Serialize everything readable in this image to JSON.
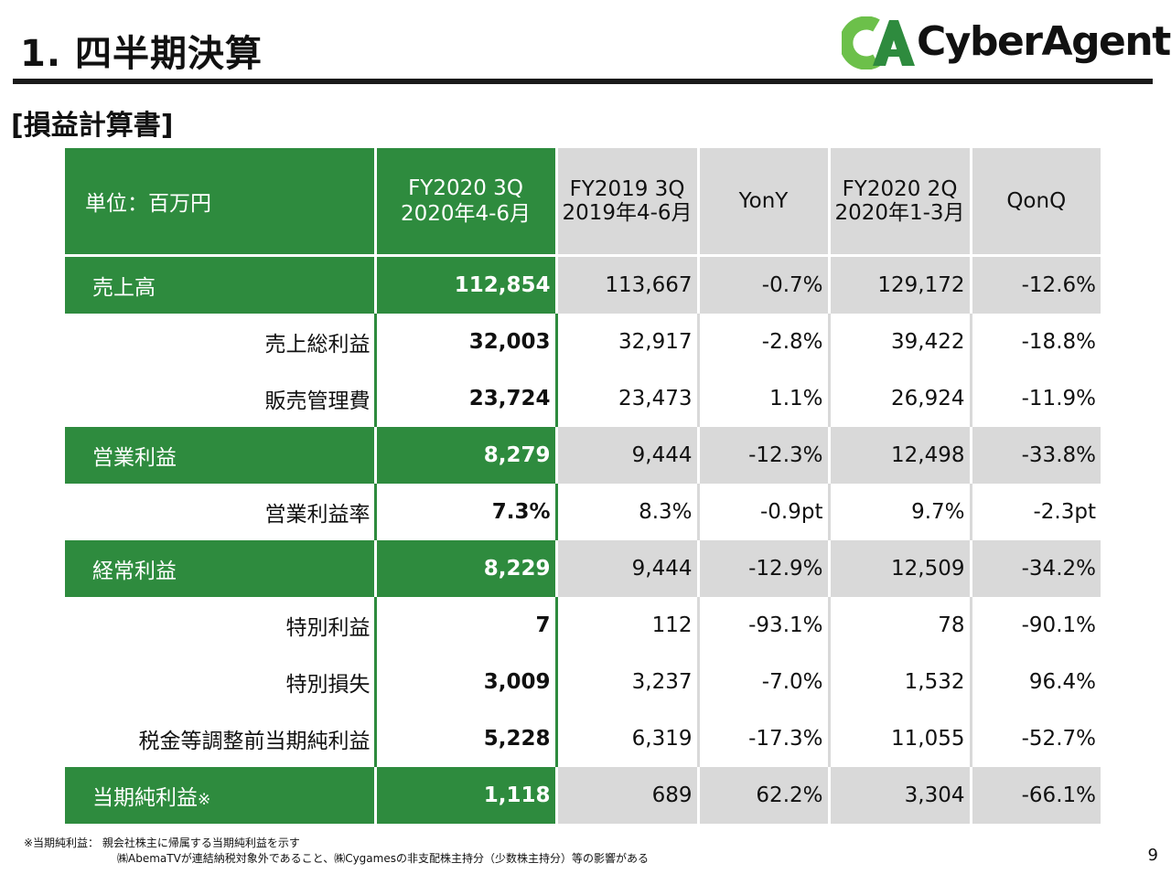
{
  "header": {
    "title": "1. 四半期決算",
    "logo_text": "CyberAgent"
  },
  "section": {
    "title": "[損益計算書]"
  },
  "table": {
    "unit_label": "単位：百万円",
    "columns": [
      {
        "line1": "FY2020 3Q",
        "line2": "2020年4-6月"
      },
      {
        "line1": "FY2019 3Q",
        "line2": "2019年4-6月"
      },
      {
        "line1": "YonY",
        "line2": ""
      },
      {
        "line1": "FY2020 2Q",
        "line2": "2020年1-3月"
      },
      {
        "line1": "QonQ",
        "line2": ""
      }
    ],
    "rows": [
      {
        "label": "売上高",
        "mark": "",
        "values": [
          "112,854",
          "113,667",
          "-0.7%",
          "129,172",
          "-12.6%"
        ]
      },
      {
        "label": "売上総利益",
        "mark": "",
        "values": [
          "32,003",
          "32,917",
          "-2.8%",
          "39,422",
          "-18.8%"
        ]
      },
      {
        "label": "販売管理費",
        "mark": "",
        "values": [
          "23,724",
          "23,473",
          "1.1%",
          "26,924",
          "-11.9%"
        ]
      },
      {
        "label": "営業利益",
        "mark": "",
        "values": [
          "8,279",
          "9,444",
          "-12.3%",
          "12,498",
          "-33.8%"
        ]
      },
      {
        "label": "営業利益率",
        "mark": "",
        "values": [
          "7.3%",
          "8.3%",
          "-0.9pt",
          "9.7%",
          "-2.3pt"
        ]
      },
      {
        "label": "経常利益",
        "mark": "",
        "values": [
          "8,229",
          "9,444",
          "-12.9%",
          "12,509",
          "-34.2%"
        ]
      },
      {
        "label": "特別利益",
        "mark": "",
        "values": [
          "7",
          "112",
          "-93.1%",
          "78",
          "-90.1%"
        ]
      },
      {
        "label": "特別損失",
        "mark": "",
        "values": [
          "3,009",
          "3,237",
          "-7.0%",
          "1,532",
          "96.4%"
        ]
      },
      {
        "label": "税金等調整前当期純利益",
        "mark": "",
        "values": [
          "5,228",
          "6,319",
          "-17.3%",
          "11,055",
          "-52.7%"
        ]
      },
      {
        "label": "当期純利益",
        "mark": "※",
        "values": [
          "1,118",
          "689",
          "62.2%",
          "3,304",
          "-66.1%"
        ]
      }
    ]
  },
  "footnote": {
    "line1": "※当期純利益： 親会社株主に帰属する当期純利益を示す",
    "line2": "㈱AbemaTVが連結納税対象外であること、㈱Cygamesの非支配株主持分（少数株主持分）等の影響がある"
  },
  "page_number": "9",
  "colors": {
    "brand_green": "#2e8b3e",
    "logo_green": "#6cc04a",
    "gray_cell": "#d9d9d9"
  }
}
